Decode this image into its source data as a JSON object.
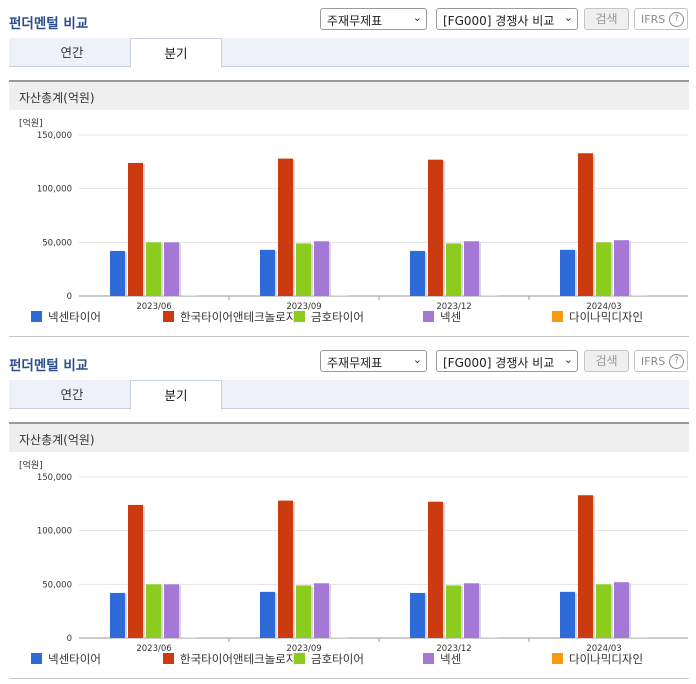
{
  "panels": [
    {
      "title": "펀더멘털 비교",
      "report_select": "주재무제표",
      "compare_select": "[FG000] 경쟁사 비교",
      "search_label": "검색",
      "ifrs_label": "IFRS",
      "help_glyph": "?",
      "tabs": [
        {
          "label": "연간",
          "active": false
        },
        {
          "label": "분기",
          "active": true
        }
      ],
      "chart_title": "자산총계(억원)"
    },
    {
      "title": "펀더멘털 비교",
      "report_select": "주재무제표",
      "compare_select": "[FG000] 경쟁사 비교",
      "search_label": "검색",
      "ifrs_label": "IFRS",
      "help_glyph": "?",
      "tabs": [
        {
          "label": "연간",
          "active": false
        },
        {
          "label": "분기",
          "active": true
        }
      ],
      "chart_title": "자산총계(억원)"
    }
  ],
  "chart_data": {
    "type": "bar",
    "unit_label": "[억원]",
    "categories": [
      "2023/06",
      "2023/09",
      "2023/12",
      "2024/03"
    ],
    "ylim": [
      0,
      150000
    ],
    "yticks": [
      0,
      50000,
      100000,
      150000
    ],
    "ytick_labels": [
      "0",
      "50,000",
      "100,000",
      "150,000"
    ],
    "grid": true,
    "legend_position": "bottom",
    "series": [
      {
        "name": "넥센타이어",
        "color": "#2e6bd9",
        "values": [
          42000,
          43000,
          42000,
          43000
        ]
      },
      {
        "name": "한국타이어앤테크놀로지",
        "color": "#cc3a0f",
        "values": [
          124000,
          128000,
          127000,
          133000
        ]
      },
      {
        "name": "금호타이어",
        "color": "#8ccc1f",
        "values": [
          50000,
          49000,
          49000,
          50000
        ]
      },
      {
        "name": "넥센",
        "color": "#a678d6",
        "values": [
          50000,
          51000,
          51000,
          52000
        ]
      },
      {
        "name": "다이나믹디자인",
        "color": "#f59a12",
        "values": [
          1000,
          1000,
          1000,
          1000
        ]
      }
    ]
  }
}
